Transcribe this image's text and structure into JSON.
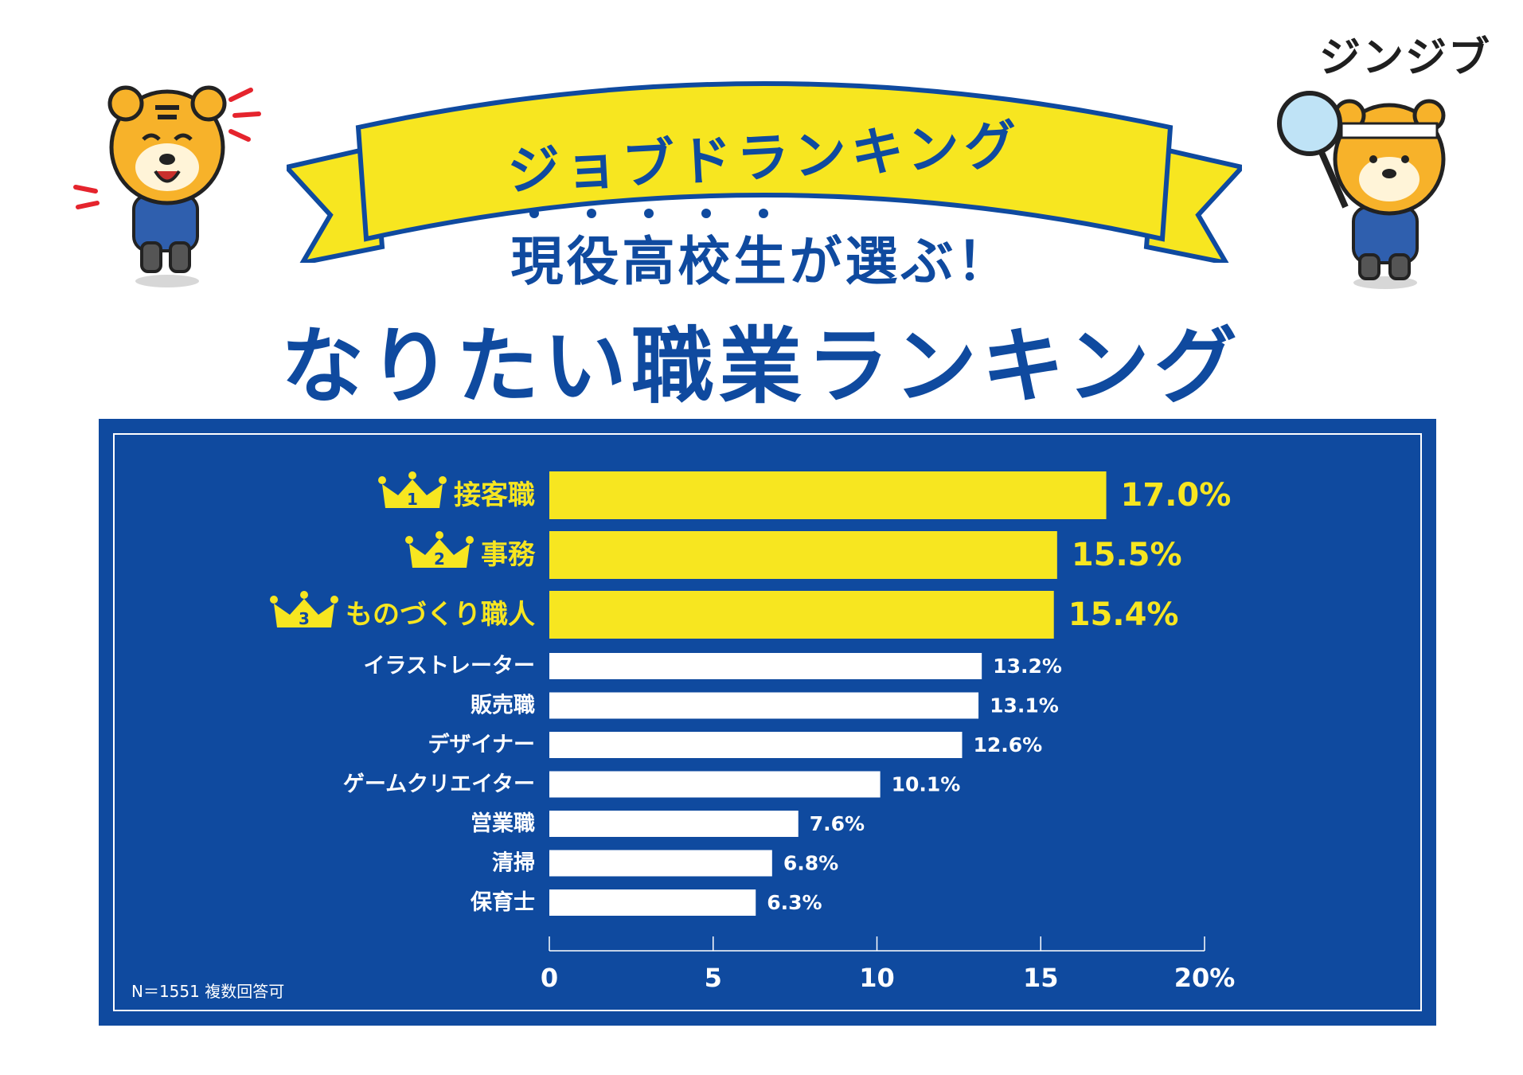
{
  "brand": {
    "logo_text": "ジンジブ"
  },
  "header": {
    "banner_text": "ジョブドランキング",
    "subtitle": "現役高校生が選ぶ！",
    "title": "なりたい職業ランキング"
  },
  "colors": {
    "navy": "#0f4a9f",
    "yellow": "#f7e620",
    "white": "#ffffff"
  },
  "icons": [
    "crown-icon",
    "tiger-mascot",
    "magnifier-icon"
  ],
  "footnote": "N＝1551  複数回答可",
  "chart_data": {
    "type": "bar",
    "orientation": "horizontal",
    "categories": [
      "接客職",
      "事務",
      "ものづくり職人",
      "イラストレーター",
      "販売職",
      "デザイナー",
      "ゲームクリエイター",
      "営業職",
      "清掃",
      "保育士"
    ],
    "values": [
      17.0,
      15.5,
      15.4,
      13.2,
      13.1,
      12.6,
      10.1,
      7.6,
      6.8,
      6.3
    ],
    "value_labels": [
      "17.0%",
      "15.5%",
      "15.4%",
      "13.2%",
      "13.1%",
      "12.6%",
      "10.1%",
      "7.6%",
      "6.8%",
      "6.3%"
    ],
    "ranks": [
      "1",
      "2",
      "3"
    ],
    "xlim": [
      0,
      20
    ],
    "xticks": [
      "0",
      "5",
      "10",
      "15",
      "20%"
    ],
    "grid": false,
    "legend": "none"
  }
}
